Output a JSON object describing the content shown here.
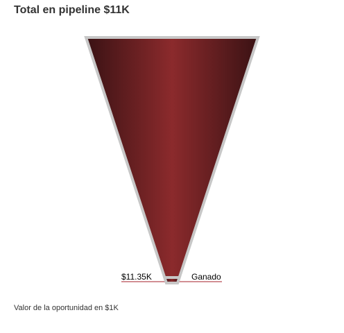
{
  "title": "Total en pipeline $11K",
  "chart_data": {
    "type": "funnel",
    "stages": [
      {
        "name": "Ganado",
        "value": 11.35,
        "value_label": "$11.35K"
      }
    ],
    "unit": "K",
    "footnote": "Valor de la oportunidad en $1K",
    "colors": {
      "fill_center": "#8b2a2c",
      "fill_edge": "#3a1214",
      "border": "#c7c7c7",
      "leader_line": "#c46a70"
    }
  }
}
